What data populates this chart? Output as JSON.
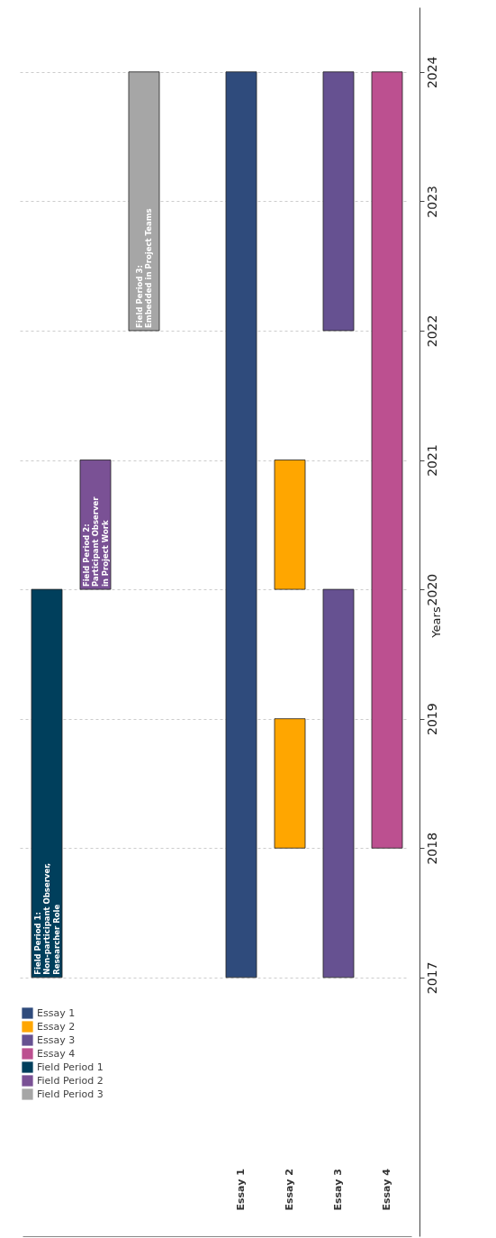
{
  "chart_data": {
    "type": "bar",
    "ylabel": "Years",
    "categories": [
      null,
      null,
      null,
      null,
      "Essay 1",
      "Essay 2",
      "Essay 3",
      "Essay 4"
    ],
    "ylim": [
      2015,
      2024.5
    ],
    "yticks": [
      2017,
      2018,
      2019,
      2020,
      2021,
      2022,
      2023,
      2024
    ],
    "grid": "y",
    "legend": "bottom left",
    "series": [
      {
        "name": "Essay 1",
        "color": "#2f4b7c",
        "values": [
          null,
          null,
          null,
          null,
          7,
          null,
          null,
          null
        ],
        "base": [
          null,
          null,
          null,
          null,
          2017,
          null,
          null,
          null
        ]
      },
      {
        "name": "Essay 2",
        "color": "#ffa600",
        "values": [
          null,
          null,
          null,
          null,
          null,
          1,
          null,
          null
        ],
        "base": [
          null,
          null,
          null,
          null,
          null,
          2018,
          null,
          null
        ]
      },
      {
        "color": "#ffa600",
        "values": [
          null,
          null,
          null,
          null,
          null,
          1,
          null,
          null
        ],
        "base": [
          null,
          null,
          null,
          null,
          null,
          2020,
          null,
          null
        ]
      },
      {
        "name": "Essay 3",
        "color": "#665191",
        "values": [
          null,
          null,
          null,
          null,
          null,
          null,
          3,
          null
        ],
        "base": [
          null,
          null,
          null,
          null,
          null,
          null,
          2017,
          null
        ]
      },
      {
        "color": "#665191",
        "values": [
          null,
          null,
          null,
          null,
          null,
          null,
          2,
          null
        ],
        "base": [
          null,
          null,
          null,
          null,
          null,
          null,
          2022,
          null
        ]
      },
      {
        "name": "Essay 4",
        "color": "#bc5090",
        "values": [
          null,
          null,
          null,
          null,
          null,
          null,
          null,
          6
        ],
        "base": [
          null,
          null,
          null,
          null,
          null,
          null,
          null,
          2018
        ]
      },
      {
        "name": "Field Period 1",
        "color": "#003f5c",
        "values": [
          3,
          null,
          null,
          null,
          null,
          null,
          null,
          null
        ],
        "base": [
          2017,
          null,
          null,
          null,
          null,
          null,
          null,
          null
        ],
        "value_labels": [
          "Field Period 1:\nNon-participant Observer,\nResearcher Role",
          null,
          null,
          null,
          null,
          null,
          null,
          null
        ]
      },
      {
        "name": "Field Period 2",
        "color": "#7a5195",
        "values": [
          null,
          1,
          null,
          null,
          null,
          null,
          null,
          null
        ],
        "base": [
          null,
          2020,
          null,
          null,
          null,
          null,
          null,
          null
        ],
        "value_labels": [
          null,
          "Field Period 2:\nParticipant Observer\nin Project Work",
          null,
          null,
          null,
          null,
          null,
          null
        ]
      },
      {
        "name": "Field Period 3",
        "color": "#a6a6a6",
        "values": [
          null,
          null,
          2,
          null,
          null,
          null,
          null,
          null
        ],
        "base": [
          null,
          null,
          2022,
          null,
          null,
          null,
          null,
          null
        ],
        "value_labels": [
          null,
          null,
          "Field Period 3:\nEmbedded in Project Teams",
          null,
          null,
          null,
          null,
          null
        ]
      }
    ]
  }
}
